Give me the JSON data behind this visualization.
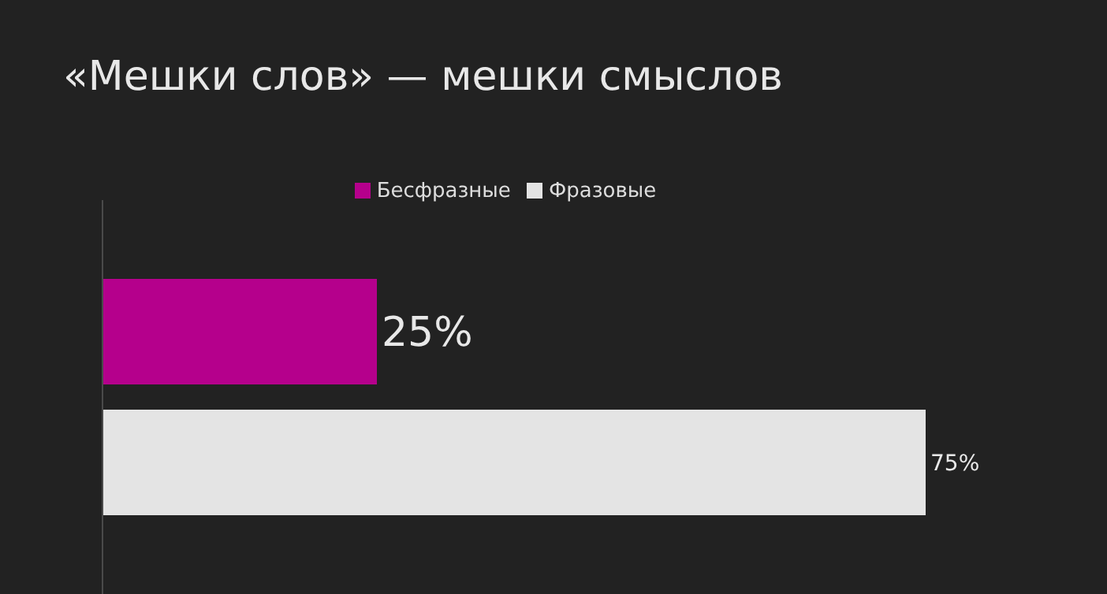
{
  "chart_data": {
    "type": "bar",
    "orientation": "horizontal",
    "title": "«Мешки слов» — мешки смыслов",
    "categories": [
      null
    ],
    "series": [
      {
        "name": "Бесфразные",
        "color": "#b5008c",
        "values": [
          25
        ],
        "value_labels": [
          "25%"
        ]
      },
      {
        "name": "Фразовые",
        "color": "#e4e4e4",
        "values": [
          75
        ],
        "value_labels": [
          "75%"
        ]
      }
    ],
    "legend": "top",
    "grid": false
  }
}
